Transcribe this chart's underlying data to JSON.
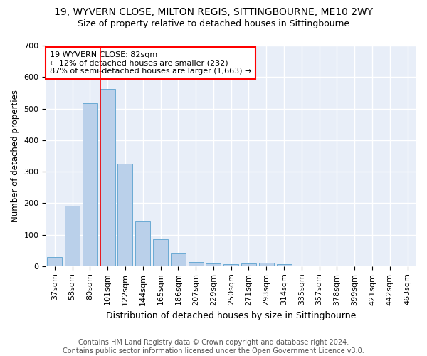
{
  "title": "19, WYVERN CLOSE, MILTON REGIS, SITTINGBOURNE, ME10 2WY",
  "subtitle": "Size of property relative to detached houses in Sittingbourne",
  "xlabel": "Distribution of detached houses by size in Sittingbourne",
  "ylabel": "Number of detached properties",
  "categories": [
    "37sqm",
    "58sqm",
    "80sqm",
    "101sqm",
    "122sqm",
    "144sqm",
    "165sqm",
    "186sqm",
    "207sqm",
    "229sqm",
    "250sqm",
    "271sqm",
    "293sqm",
    "314sqm",
    "335sqm",
    "357sqm",
    "378sqm",
    "399sqm",
    "421sqm",
    "442sqm",
    "463sqm"
  ],
  "values": [
    30,
    192,
    518,
    562,
    325,
    141,
    86,
    40,
    13,
    8,
    7,
    8,
    10,
    6,
    0,
    0,
    0,
    0,
    0,
    0,
    0
  ],
  "bar_color": "#bad0ea",
  "bar_edge_color": "#6aaad4",
  "vline_x_index": 3,
  "annotation_text": "19 WYVERN CLOSE: 82sqm\n← 12% of detached houses are smaller (232)\n87% of semi-detached houses are larger (1,663) →",
  "annotation_box_color": "white",
  "annotation_box_edge_color": "red",
  "vline_color": "red",
  "ylim": [
    0,
    700
  ],
  "yticks": [
    0,
    100,
    200,
    300,
    400,
    500,
    600,
    700
  ],
  "background_color": "#e8eef8",
  "grid_color": "white",
  "footer": "Contains HM Land Registry data © Crown copyright and database right 2024.\nContains public sector information licensed under the Open Government Licence v3.0.",
  "title_fontsize": 10,
  "subtitle_fontsize": 9,
  "xlabel_fontsize": 9,
  "ylabel_fontsize": 8.5,
  "tick_fontsize": 8,
  "annotation_fontsize": 8,
  "footer_fontsize": 7
}
